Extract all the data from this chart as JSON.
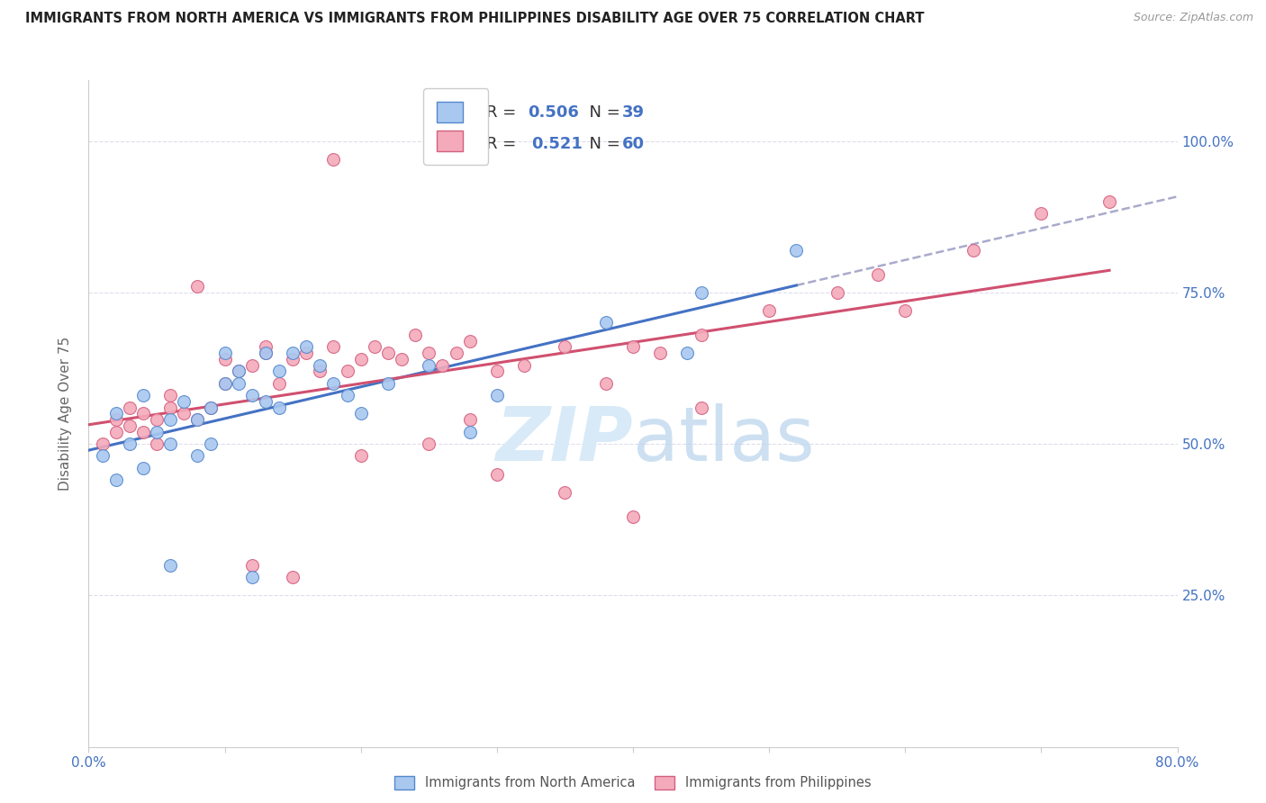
{
  "title": "IMMIGRANTS FROM NORTH AMERICA VS IMMIGRANTS FROM PHILIPPINES DISABILITY AGE OVER 75 CORRELATION CHART",
  "source": "Source: ZipAtlas.com",
  "ylabel": "Disability Age Over 75",
  "x_min": 0.0,
  "x_max": 0.8,
  "y_min": 0.0,
  "y_max": 1.1,
  "x_ticks": [
    0.0,
    0.1,
    0.2,
    0.3,
    0.4,
    0.5,
    0.6,
    0.7,
    0.8
  ],
  "x_tick_labels": [
    "0.0%",
    "",
    "",
    "",
    "",
    "",
    "",
    "",
    "80.0%"
  ],
  "y_ticks": [
    0.25,
    0.5,
    0.75,
    1.0
  ],
  "y_tick_labels": [
    "25.0%",
    "50.0%",
    "75.0%",
    "100.0%"
  ],
  "blue_R": "0.506",
  "blue_N": "39",
  "pink_R": "0.521",
  "pink_N": "60",
  "blue_color": "#A8C8F0",
  "pink_color": "#F4AABB",
  "blue_edge_color": "#5588CC",
  "pink_edge_color": "#D46080",
  "blue_line_color": "#4472C4",
  "pink_line_color": "#D05070",
  "dashed_line_color": "#AAAACC",
  "grid_color": "#DDDDEE",
  "legend_label_blue": "Immigrants from North America",
  "legend_label_pink": "Immigrants from Philippines",
  "blue_scatter_x": [
    0.01,
    0.02,
    0.03,
    0.04,
    0.05,
    0.06,
    0.02,
    0.04,
    0.06,
    0.08,
    0.07,
    0.09,
    0.1,
    0.11,
    0.08,
    0.1,
    0.12,
    0.13,
    0.09,
    0.11,
    0.14,
    0.13,
    0.15,
    0.16,
    0.14,
    0.17,
    0.18,
    0.19,
    0.2,
    0.22,
    0.25,
    0.3,
    0.38,
    0.45,
    0.52,
    0.06,
    0.12,
    0.28,
    0.44
  ],
  "blue_scatter_y": [
    0.48,
    0.44,
    0.5,
    0.46,
    0.52,
    0.5,
    0.55,
    0.58,
    0.54,
    0.48,
    0.57,
    0.56,
    0.6,
    0.62,
    0.54,
    0.65,
    0.58,
    0.65,
    0.5,
    0.6,
    0.62,
    0.57,
    0.65,
    0.66,
    0.56,
    0.63,
    0.6,
    0.58,
    0.55,
    0.6,
    0.63,
    0.58,
    0.7,
    0.75,
    0.82,
    0.3,
    0.28,
    0.52,
    0.65
  ],
  "pink_scatter_x": [
    0.01,
    0.02,
    0.02,
    0.03,
    0.03,
    0.04,
    0.04,
    0.05,
    0.05,
    0.06,
    0.06,
    0.07,
    0.08,
    0.09,
    0.1,
    0.1,
    0.11,
    0.12,
    0.13,
    0.13,
    0.14,
    0.15,
    0.16,
    0.17,
    0.18,
    0.19,
    0.2,
    0.21,
    0.22,
    0.23,
    0.24,
    0.25,
    0.26,
    0.27,
    0.28,
    0.3,
    0.32,
    0.35,
    0.38,
    0.4,
    0.42,
    0.45,
    0.5,
    0.55,
    0.58,
    0.65,
    0.7,
    0.75,
    0.3,
    0.2,
    0.15,
    0.25,
    0.35,
    0.4,
    0.08,
    0.12,
    0.18,
    0.28,
    0.45,
    0.6
  ],
  "pink_scatter_y": [
    0.5,
    0.52,
    0.54,
    0.53,
    0.56,
    0.52,
    0.55,
    0.5,
    0.54,
    0.58,
    0.56,
    0.55,
    0.54,
    0.56,
    0.6,
    0.64,
    0.62,
    0.63,
    0.65,
    0.66,
    0.6,
    0.64,
    0.65,
    0.62,
    0.66,
    0.62,
    0.64,
    0.66,
    0.65,
    0.64,
    0.68,
    0.65,
    0.63,
    0.65,
    0.67,
    0.62,
    0.63,
    0.66,
    0.6,
    0.66,
    0.65,
    0.68,
    0.72,
    0.75,
    0.78,
    0.82,
    0.88,
    0.9,
    0.45,
    0.48,
    0.28,
    0.5,
    0.42,
    0.38,
    0.76,
    0.3,
    0.97,
    0.54,
    0.56,
    0.72
  ]
}
